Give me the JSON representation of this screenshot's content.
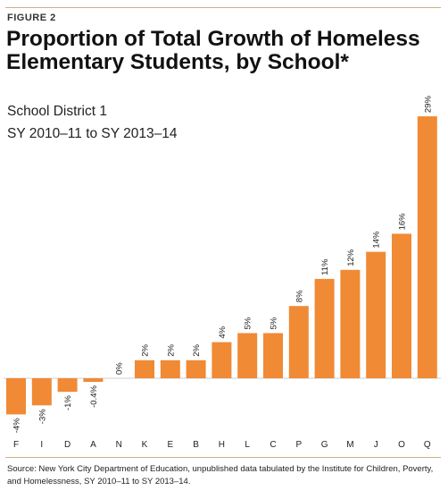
{
  "header": {
    "figure_label": "FIGURE 2",
    "title": "Proportion of Total Growth of Homeless Elementary Students, by School*",
    "subtitle1": "School District 1",
    "subtitle2": "SY 2010–11 to SY 2013–14"
  },
  "footer": {
    "source": "Source: New York City Department of Education, unpublished data tabulated by the Institute for Children, Poverty, and Homelessness, SY 2010–11 to SY 2013–14."
  },
  "colors": {
    "bar": "#f08a35",
    "rule": "#c9b48a"
  },
  "chart_data": {
    "type": "bar",
    "title": "Proportion of Total Growth of Homeless Elementary Students, by School*",
    "xlabel": "",
    "ylabel": "",
    "unit": "%",
    "ylim": [
      -5,
      30
    ],
    "grid": false,
    "categories": [
      "F",
      "I",
      "D",
      "A",
      "N",
      "K",
      "E",
      "B",
      "H",
      "L",
      "C",
      "P",
      "G",
      "M",
      "J",
      "O",
      "Q"
    ],
    "values": [
      -4,
      -3,
      -1.5,
      -0.4,
      0,
      2,
      2,
      2,
      4,
      5,
      5,
      8,
      11,
      12,
      14,
      16,
      29
    ],
    "data_labels": [
      "-4%",
      "-3%",
      "-1%",
      "-0.4%",
      "0%",
      "2%",
      "2%",
      "2%",
      "4%",
      "5%",
      "5%",
      "8%",
      "11%",
      "12%",
      "14%",
      "16%",
      "29%"
    ]
  }
}
